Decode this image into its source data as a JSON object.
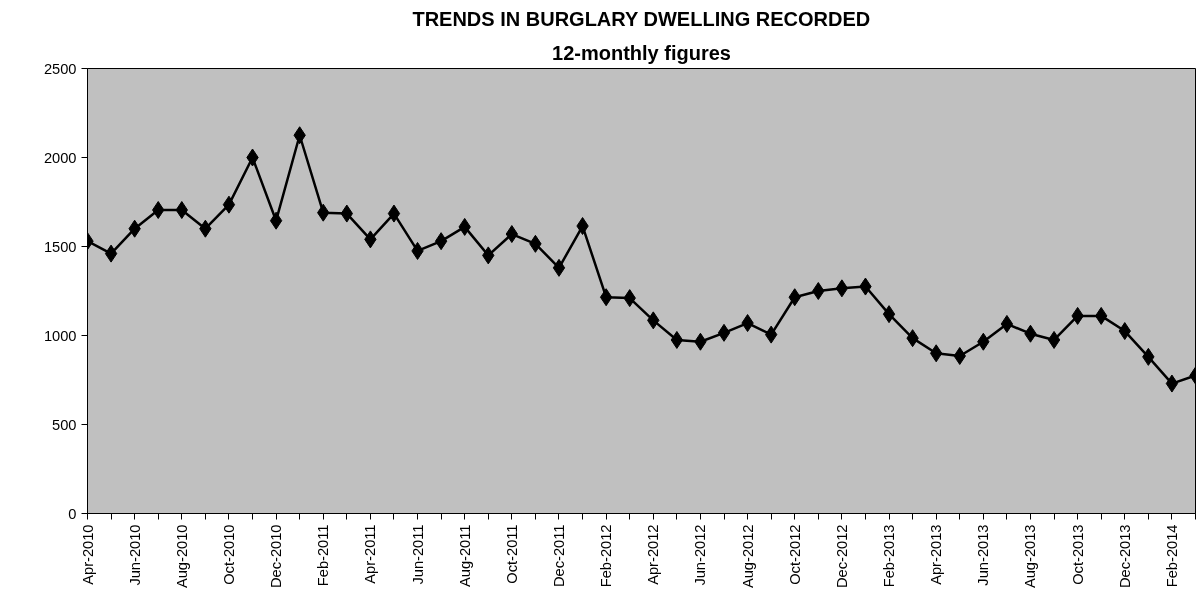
{
  "chart_data": {
    "type": "line",
    "title": "TRENDS IN BURGLARY DWELLING RECORDED",
    "subtitle": "12-monthly figures",
    "x": [
      "2010-04",
      "2010-05",
      "2010-06",
      "2010-07",
      "2010-08",
      "2010-09",
      "2010-10",
      "2010-11",
      "2010-12",
      "2011-01",
      "2011-02",
      "2011-03",
      "2011-04",
      "2011-05",
      "2011-06",
      "2011-07",
      "2011-08",
      "2011-09",
      "2011-10",
      "2011-11",
      "2011-12",
      "2012-01",
      "2012-02",
      "2012-03",
      "2012-04",
      "2012-05",
      "2012-06",
      "2012-07",
      "2012-08",
      "2012-09",
      "2012-10",
      "2012-11",
      "2012-12",
      "2013-01",
      "2013-02",
      "2013-03",
      "2013-04",
      "2013-05",
      "2013-06",
      "2013-07",
      "2013-08",
      "2013-09",
      "2013-10",
      "2013-11",
      "2013-12",
      "2014-01",
      "2014-02",
      "2014-03"
    ],
    "series": [
      {
        "color": "#000000",
        "values": [
          1530,
          1460,
          1600,
          1705,
          1705,
          1600,
          1735,
          2000,
          1645,
          2125,
          1690,
          1685,
          1540,
          1685,
          1475,
          1530,
          1610,
          1450,
          1570,
          1515,
          1380,
          1615,
          1215,
          1210,
          1085,
          975,
          965,
          1015,
          1070,
          1005,
          1215,
          1250,
          1265,
          1275,
          1120,
          985,
          900,
          885,
          965,
          1065,
          1010,
          975,
          1110,
          1110,
          1025,
          880,
          730,
          775
        ]
      }
    ],
    "xlim": [
      "2010-04",
      "2014-03"
    ],
    "xticks": [
      {
        "value": "2010-04",
        "label": "Apr-2010"
      },
      {
        "value": "2010-05",
        "label": null
      },
      {
        "value": "2010-06",
        "label": "Jun-2010"
      },
      {
        "value": "2010-07",
        "label": null
      },
      {
        "value": "2010-08",
        "label": "Aug-2010"
      },
      {
        "value": "2010-09",
        "label": null
      },
      {
        "value": "2010-10",
        "label": "Oct-2010"
      },
      {
        "value": "2010-11",
        "label": null
      },
      {
        "value": "2010-12",
        "label": "Dec-2010"
      },
      {
        "value": "2011-01",
        "label": null
      },
      {
        "value": "2011-02",
        "label": "Feb-2011"
      },
      {
        "value": "2011-03",
        "label": null
      },
      {
        "value": "2011-04",
        "label": "Apr-2011"
      },
      {
        "value": "2011-05",
        "label": null
      },
      {
        "value": "2011-06",
        "label": "Jun-2011"
      },
      {
        "value": "2011-07",
        "label": null
      },
      {
        "value": "2011-08",
        "label": "Aug-2011"
      },
      {
        "value": "2011-09",
        "label": null
      },
      {
        "value": "2011-10",
        "label": "Oct-2011"
      },
      {
        "value": "2011-11",
        "label": null
      },
      {
        "value": "2011-12",
        "label": "Dec-2011"
      },
      {
        "value": "2012-01",
        "label": null
      },
      {
        "value": "2012-02",
        "label": "Feb-2012"
      },
      {
        "value": "2012-03",
        "label": null
      },
      {
        "value": "2012-04",
        "label": "Apr-2012"
      },
      {
        "value": "2012-05",
        "label": null
      },
      {
        "value": "2012-06",
        "label": "Jun-2012"
      },
      {
        "value": "2012-07",
        "label": null
      },
      {
        "value": "2012-08",
        "label": "Aug-2012"
      },
      {
        "value": "2012-09",
        "label": null
      },
      {
        "value": "2012-10",
        "label": "Oct-2012"
      },
      {
        "value": "2012-11",
        "label": null
      },
      {
        "value": "2012-12",
        "label": "Dec-2012"
      },
      {
        "value": "2013-01",
        "label": null
      },
      {
        "value": "2013-02",
        "label": "Feb-2013"
      },
      {
        "value": "2013-03",
        "label": null
      },
      {
        "value": "2013-04",
        "label": "Apr-2013"
      },
      {
        "value": "2013-05",
        "label": null
      },
      {
        "value": "2013-06",
        "label": "Jun-2013"
      },
      {
        "value": "2013-07",
        "label": null
      },
      {
        "value": "2013-08",
        "label": "Aug-2013"
      },
      {
        "value": "2013-09",
        "label": null
      },
      {
        "value": "2013-10",
        "label": "Oct-2013"
      },
      {
        "value": "2013-11",
        "label": null
      },
      {
        "value": "2013-12",
        "label": "Dec-2013"
      },
      {
        "value": "2014-01",
        "label": null
      },
      {
        "value": "2014-02",
        "label": "Feb-2014"
      },
      {
        "value": "2014-03",
        "label": null
      }
    ],
    "ylim": [
      0,
      2500
    ],
    "yticks": [
      0,
      500,
      1000,
      1500,
      2000,
      2500
    ],
    "grid": false,
    "marker": "diamond",
    "line_style": "solid"
  }
}
